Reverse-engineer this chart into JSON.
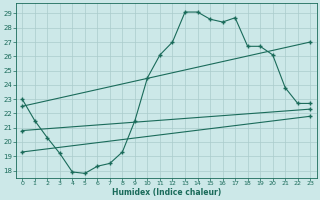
{
  "xlabel": "Humidex (Indice chaleur)",
  "bg_color": "#cce8e8",
  "line_color": "#1a6b5a",
  "grid_color": "#aacccc",
  "xlim": [
    -0.5,
    23.5
  ],
  "ylim": [
    17.5,
    29.7
  ],
  "xticks": [
    0,
    1,
    2,
    3,
    4,
    5,
    6,
    7,
    8,
    9,
    10,
    11,
    12,
    13,
    14,
    15,
    16,
    17,
    18,
    19,
    20,
    21,
    22,
    23
  ],
  "yticks": [
    18,
    19,
    20,
    21,
    22,
    23,
    24,
    25,
    26,
    27,
    28,
    29
  ],
  "line1_x": [
    0,
    1,
    2,
    3,
    4,
    5,
    6,
    7,
    8,
    9,
    10,
    11,
    12,
    13,
    14,
    15,
    16,
    17,
    18,
    19,
    20,
    21,
    22,
    23
  ],
  "line1_y": [
    23,
    21.5,
    20.3,
    19.2,
    17.9,
    17.8,
    18.3,
    18.5,
    19.3,
    21.5,
    24.5,
    26.1,
    27.0,
    29.1,
    29.1,
    28.6,
    28.4,
    28.7,
    26.7,
    26.7,
    26.1,
    23.8,
    22.7,
    22.7
  ],
  "line2_x": [
    0,
    23
  ],
  "line2_y": [
    22.5,
    27.0
  ],
  "line3_x": [
    0,
    23
  ],
  "line3_y": [
    19.3,
    21.8
  ],
  "line4_x": [
    0,
    23
  ],
  "line4_y": [
    20.8,
    22.3
  ]
}
